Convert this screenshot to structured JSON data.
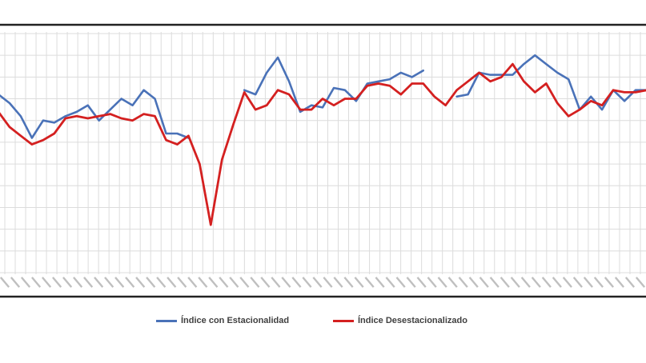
{
  "chart_data": {
    "type": "line",
    "x_tick_count": 62,
    "x_tick_labels": [],
    "ylim": [
      60,
      115
    ],
    "grid": true,
    "legend_position": "bottom",
    "series": [
      {
        "name": "Índice con Estacionalidad",
        "color": "#4a72b8",
        "values": [
          101,
          99,
          96,
          91,
          95,
          94.5,
          96,
          97,
          98.5,
          95,
          97.5,
          100,
          98.5,
          102,
          100,
          92,
          92,
          91,
          null,
          null,
          null,
          null,
          102,
          101,
          106,
          109.5,
          104,
          97,
          98.5,
          98,
          102.5,
          102,
          99.5,
          103.5,
          104,
          104.5,
          106,
          105,
          106.5,
          null,
          null,
          100.5,
          101,
          106,
          105.5,
          105.5,
          105.5,
          108,
          110,
          108,
          106,
          104.5,
          97.5,
          100.5,
          97.5,
          102,
          99.5,
          102,
          102
        ]
      },
      {
        "name": "Índice Desestacionalizado",
        "color": "#d42020",
        "values": [
          97,
          93.5,
          91.5,
          89.5,
          90.5,
          92,
          95.5,
          96,
          95.5,
          96,
          96.5,
          95.5,
          95,
          96.5,
          96,
          90.5,
          89.5,
          91.5,
          85,
          71,
          86,
          94,
          101.5,
          97.5,
          98.5,
          102,
          101,
          97.5,
          97.5,
          100,
          98.5,
          100,
          100,
          103,
          103.5,
          103,
          101,
          103.5,
          103.5,
          100.5,
          98.5,
          102,
          104,
          106,
          104,
          105,
          108,
          104,
          101.5,
          103.5,
          99,
          96,
          97.5,
          99.5,
          98.5,
          102,
          101.5,
          101.5,
          102
        ]
      }
    ]
  },
  "legend": {
    "series_1_label": "Índice con Estacionalidad",
    "series_2_label": "Índice Desestacionalizado"
  }
}
